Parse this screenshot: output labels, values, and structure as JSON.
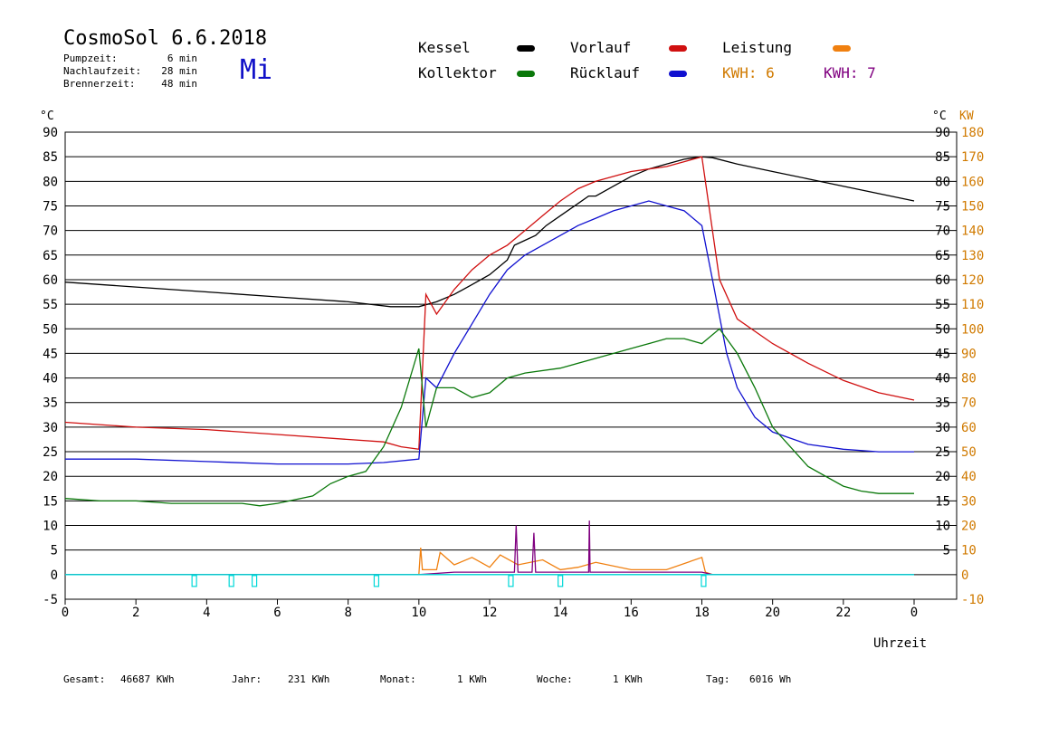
{
  "header": {
    "title": "CosmoSol 6.6.2018",
    "weekday": "Mi",
    "stats": [
      {
        "label": "Pumpzeit:",
        "value": "6 min"
      },
      {
        "label": "Nachlaufzeit:",
        "value": "28 min"
      },
      {
        "label": "Brennerzeit:",
        "value": "48 min"
      }
    ]
  },
  "legend": {
    "kessel": "Kessel",
    "kollektor": "Kollektor",
    "vorlauf": "Vorlauf",
    "ruecklauf": "Rücklauf",
    "leistung": "Leistung",
    "kwh_orange": "KWH: 6",
    "kwh_purple": "KWH: 7"
  },
  "footer": {
    "gesamt_label": "Gesamt:",
    "gesamt_value": "46687 KWh",
    "jahr_label": "Jahr:",
    "jahr_value": "231 KWh",
    "monat_label": "Monat:",
    "monat_value": "1 KWh",
    "woche_label": "Woche:",
    "woche_value": "1 KWh",
    "tag_label": "Tag:",
    "tag_value": "6016 Wh"
  },
  "colors": {
    "kessel": "#000000",
    "kollektor": "#0a780a",
    "vorlauf": "#d01010",
    "ruecklauf": "#1010d0",
    "leistung": "#f08010",
    "purple": "#800080",
    "pump": "#00d8d8",
    "kw_axis": "#d07a00",
    "weekday": "#1010c8"
  },
  "chart_data": {
    "type": "line",
    "title": "CosmoSol 6.6.2018",
    "xlabel": "Uhrzeit",
    "ylabel_left": "°C",
    "ylabel_right": "°C",
    "ylabel_kw": "KW",
    "xlim": [
      0,
      24
    ],
    "ylim": [
      -5,
      90
    ],
    "ylim_kw": [
      -10,
      180
    ],
    "x_ticks": [
      "0",
      "2",
      "4",
      "6",
      "8",
      "10",
      "12",
      "14",
      "16",
      "18",
      "20",
      "22",
      "0"
    ],
    "y_ticks_left": [
      "90",
      "85",
      "80",
      "75",
      "70",
      "65",
      "60",
      "55",
      "50",
      "45",
      "40",
      "35",
      "30",
      "25",
      "20",
      "15",
      "10",
      "5",
      "0",
      "-5"
    ],
    "y_ticks_right": [
      "90",
      "85",
      "80",
      "75",
      "70",
      "65",
      "60",
      "55",
      "50",
      "45",
      "40",
      "35",
      "30",
      "25",
      "20",
      "15",
      "10",
      "5"
    ],
    "y_ticks_kw": [
      "180",
      "170",
      "160",
      "150",
      "140",
      "130",
      "120",
      "110",
      "100",
      "90",
      "80",
      "70",
      "60",
      "50",
      "40",
      "30",
      "20",
      "10",
      "0",
      "-10"
    ],
    "grid": true,
    "series": [
      {
        "name": "Kessel",
        "color": "#000000",
        "x": [
          0,
          2,
          4,
          6,
          8,
          9.2,
          10,
          10.5,
          11,
          11.5,
          12,
          12.5,
          12.7,
          13,
          13.3,
          13.6,
          14,
          14.5,
          14.8,
          15,
          15.5,
          16,
          16.5,
          17,
          17.5,
          18,
          18.3,
          19,
          20,
          21,
          22,
          23,
          24
        ],
        "y": [
          59.5,
          58.5,
          57.5,
          56.5,
          55.5,
          54.5,
          54.5,
          55.5,
          57,
          59,
          61,
          64,
          67,
          68,
          69,
          71,
          73,
          75.5,
          77,
          77,
          79,
          81,
          82.5,
          83.5,
          84.5,
          85,
          84.8,
          83.5,
          82,
          80.5,
          79,
          77.5,
          76
        ]
      },
      {
        "name": "Vorlauf",
        "color": "#d01010",
        "x": [
          0,
          2,
          4,
          6,
          8,
          9,
          9.5,
          10,
          10.2,
          10.5,
          11,
          11.5,
          12,
          12.5,
          13,
          13.5,
          14,
          14.5,
          15,
          15.5,
          16,
          16.5,
          17,
          17.5,
          18,
          18.2,
          18.5,
          19,
          20,
          21,
          22,
          23,
          24
        ],
        "y": [
          31,
          30,
          29.5,
          28.5,
          27.5,
          27,
          26,
          25.5,
          57,
          53,
          58,
          62,
          65,
          67,
          70,
          73,
          76,
          78.5,
          80,
          81,
          82,
          82.5,
          83,
          84,
          85,
          75,
          60,
          52,
          47,
          43,
          39.5,
          37,
          35.5
        ]
      },
      {
        "name": "Rücklauf",
        "color": "#1010d0",
        "x": [
          0,
          2,
          4,
          6,
          8,
          9,
          10,
          10.2,
          10.5,
          11,
          11.5,
          12,
          12.5,
          13,
          13.5,
          14,
          14.5,
          15,
          15.5,
          16,
          16.5,
          17,
          17.5,
          18,
          18.3,
          18.7,
          19,
          19.5,
          20,
          21,
          22,
          23,
          24
        ],
        "y": [
          23.5,
          23.5,
          23,
          22.5,
          22.5,
          22.8,
          23.5,
          40,
          38,
          45,
          51,
          57,
          62,
          65,
          67,
          69,
          71,
          72.5,
          74,
          75,
          76,
          75,
          74,
          71,
          60,
          45,
          38,
          32,
          29,
          26.5,
          25.5,
          25,
          25
        ]
      },
      {
        "name": "Kollektor",
        "color": "#0a780a",
        "x": [
          0,
          1,
          2,
          3,
          4,
          5,
          5.5,
          6,
          7,
          7.5,
          8,
          8.5,
          9,
          9.5,
          10,
          10.2,
          10.5,
          11,
          11.5,
          12,
          12.5,
          13,
          14,
          15,
          16,
          16.5,
          17,
          17.5,
          18,
          18.5,
          19,
          19.5,
          20,
          21,
          22,
          22.5,
          23,
          24
        ],
        "y": [
          15.5,
          15,
          15,
          14.5,
          14.5,
          14.5,
          14,
          14.5,
          16,
          18.5,
          20,
          21,
          26,
          34,
          46,
          30,
          38,
          38,
          36,
          37,
          40,
          41,
          42,
          44,
          46,
          47,
          48,
          48,
          47,
          50,
          45,
          38,
          30,
          22,
          18,
          17,
          16.5,
          16.5
        ]
      },
      {
        "name": "Leistung",
        "color": "#f08010",
        "x": [
          0,
          10,
          10.05,
          10.1,
          10.5,
          10.6,
          11,
          11.5,
          12,
          12.3,
          12.8,
          13.5,
          14,
          14.5,
          15,
          16,
          17,
          18,
          18.1,
          18.3,
          24
        ],
        "y": [
          0,
          0,
          5.5,
          1,
          1,
          4.5,
          2,
          3.5,
          1.5,
          4,
          2,
          3,
          1,
          1.5,
          2.5,
          1,
          1,
          3.5,
          0.5,
          0,
          0
        ]
      },
      {
        "name": "KWH",
        "color": "#800080",
        "x": [
          0,
          10,
          11,
          12,
          12.7,
          12.75,
          12.8,
          13,
          13.2,
          13.25,
          13.3,
          14,
          14.8,
          14.82,
          14.84,
          15,
          16,
          17,
          18,
          18.3,
          24
        ],
        "y": [
          0,
          0,
          0.5,
          0.5,
          0.5,
          10,
          0.5,
          0.5,
          0.5,
          8.5,
          0.5,
          0.5,
          0.5,
          11,
          0.5,
          0.5,
          0.5,
          0.5,
          0.5,
          0,
          0
        ]
      },
      {
        "name": "Pumpe",
        "color": "#00d8d8",
        "x": [
          0,
          24
        ],
        "y": [
          0,
          0
        ]
      }
    ],
    "pump_markers_x": [
      3.65,
      4.7,
      5.35,
      8.8,
      12.6,
      14,
      18.05
    ]
  }
}
